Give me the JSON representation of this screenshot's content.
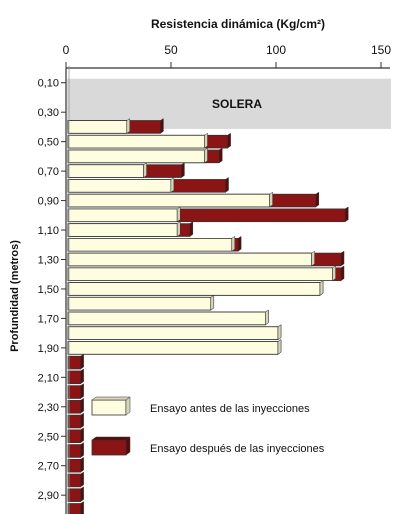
{
  "chart_data": {
    "type": "bar",
    "orientation": "horizontal",
    "title": "",
    "xlabel": "Resistencia dinámica (Kg/cm²)",
    "ylabel": "Profundidad (metros)",
    "xlim": [
      0,
      150
    ],
    "x_ticks": [
      0,
      50,
      100,
      150
    ],
    "y_tick_labels": [
      "0,10",
      "0,30",
      "0,50",
      "0,70",
      "0,90",
      "1,10",
      "1,30",
      "1,50",
      "1,70",
      "1,90",
      "2,10",
      "2,30",
      "2,50",
      "2,70",
      "2,90"
    ],
    "layer_label": "SOLERA",
    "layer_depth_range": [
      "0,10",
      "0,40"
    ],
    "depths": [
      "0,40",
      "0,50",
      "0,60",
      "0,70",
      "0,80",
      "0,90",
      "1,00",
      "1,10",
      "1,20",
      "1,30",
      "1,40",
      "1,50",
      "1,60",
      "1,70",
      "1,80",
      "1,90",
      "2,00",
      "2,10",
      "2,20",
      "2,30",
      "2,40",
      "2,50",
      "2,60",
      "2,70",
      "2,80",
      "2,90",
      "3,00"
    ],
    "series": [
      {
        "name": "Ensayo antes de las inyecciones",
        "color": "#fffde0",
        "values": [
          28,
          65,
          65,
          36,
          49,
          96,
          52,
          52,
          78,
          116,
          126,
          120,
          68,
          94,
          100,
          100,
          0,
          0,
          0,
          0,
          0,
          0,
          0,
          0,
          0,
          0,
          0
        ]
      },
      {
        "name": "Ensayo después de las inyecciones",
        "color": "#8b1414",
        "values": [
          44,
          76,
          72,
          54,
          75,
          118,
          132,
          58,
          81,
          130,
          130,
          120,
          68,
          94,
          100,
          100,
          6,
          6,
          6,
          6,
          6,
          6,
          6,
          6,
          6,
          6,
          6
        ]
      }
    ],
    "legend_position": "inside-bottom"
  }
}
